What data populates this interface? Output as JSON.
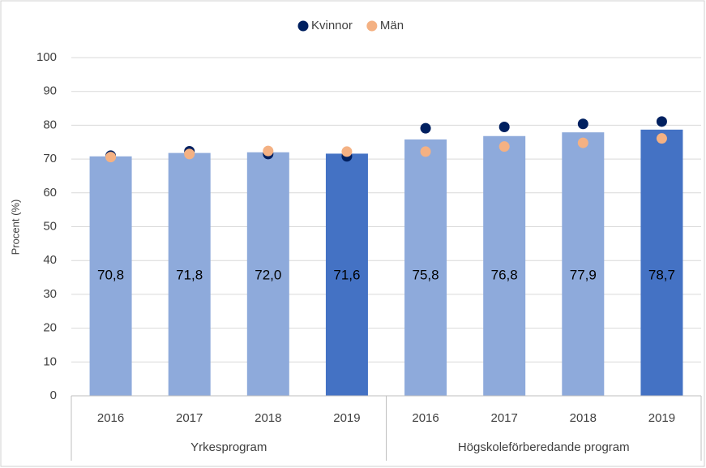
{
  "chart_data": {
    "type": "bar",
    "y_label": "Procent (%)",
    "groups": [
      {
        "name": "Yrkesprogram",
        "categories": [
          "2016",
          "2017",
          "2018",
          "2019"
        ]
      },
      {
        "name": "Högskoleförberedande program",
        "categories": [
          "2016",
          "2017",
          "2018",
          "2019"
        ]
      }
    ],
    "values": [
      70.8,
      71.8,
      72.0,
      71.6,
      75.8,
      76.8,
      77.9,
      78.7
    ],
    "value_labels": [
      "70,8",
      "71,8",
      "72,0",
      "71,6",
      "75,8",
      "76,8",
      "77,9",
      "78,7"
    ],
    "colors": [
      "#8eaadb",
      "#8eaadb",
      "#8eaadb",
      "#4472c4",
      "#8eaadb",
      "#8eaadb",
      "#8eaadb",
      "#4472c4"
    ],
    "series": [
      {
        "name": "Kvinnor",
        "color": "#002060",
        "values": [
          71.0,
          72.3,
          71.5,
          70.8,
          79.1,
          79.5,
          80.4,
          81.1
        ]
      },
      {
        "name": "Män",
        "color": "#f4b183",
        "values": [
          70.6,
          71.5,
          72.4,
          72.2,
          72.2,
          73.7,
          74.8,
          76.1
        ]
      }
    ],
    "ylim": [
      0,
      100
    ],
    "yticks": [
      0,
      10,
      20,
      30,
      40,
      50,
      60,
      70,
      80,
      90,
      100
    ],
    "grid": true,
    "legend": "top"
  }
}
